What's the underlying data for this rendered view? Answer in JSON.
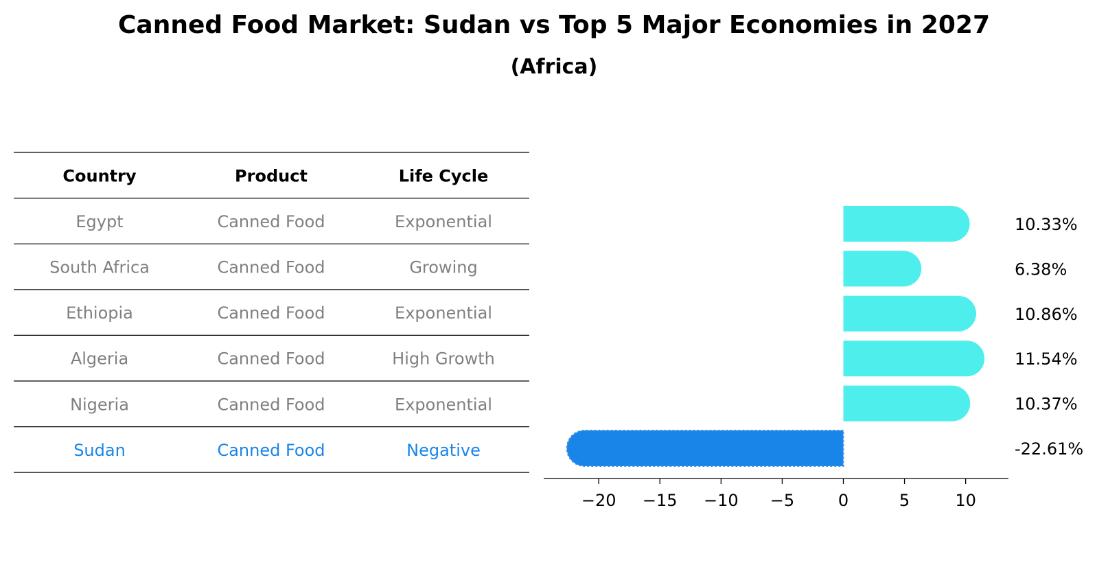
{
  "title": "Canned Food Market: Sudan vs Top 5 Major Economies in 2027",
  "subtitle": "(Africa)",
  "colors": {
    "highlight": "#1a85e8",
    "bar": "#4eeeec",
    "muted_text": "#808080",
    "rule": "#000000"
  },
  "table": {
    "headers": [
      "Country",
      "Product",
      "Life Cycle"
    ],
    "rows": [
      {
        "country": "Egypt",
        "product": "Canned Food",
        "life_cycle": "Exponential",
        "highlight": false
      },
      {
        "country": "South Africa",
        "product": "Canned Food",
        "life_cycle": "Growing",
        "highlight": false
      },
      {
        "country": "Ethiopia",
        "product": "Canned Food",
        "life_cycle": "Exponential",
        "highlight": false
      },
      {
        "country": "Algeria",
        "product": "Canned Food",
        "life_cycle": "High Growth",
        "highlight": false
      },
      {
        "country": "Nigeria",
        "product": "Canned Food",
        "life_cycle": "Exponential",
        "highlight": false
      },
      {
        "country": "Sudan",
        "product": "Canned Food",
        "life_cycle": "Negative",
        "highlight": true
      }
    ]
  },
  "chart_data": {
    "type": "bar",
    "orientation": "horizontal",
    "title": "Canned Food Market: Sudan vs Top 5 Major Economies in 2027",
    "subtitle": "(Africa)",
    "categories": [
      "Egypt",
      "South Africa",
      "Ethiopia",
      "Algeria",
      "Nigeria",
      "Sudan"
    ],
    "values": [
      10.33,
      6.38,
      10.86,
      11.54,
      10.37,
      -22.61
    ],
    "value_labels": [
      "10.33%",
      "6.38%",
      "10.86%",
      "11.54%",
      "10.37%",
      "-22.61%"
    ],
    "highlight_index": 5,
    "xlim": [
      -24.5,
      13.5
    ],
    "xticks": [
      -20,
      -15,
      -10,
      -5,
      0,
      5,
      10
    ],
    "xtick_labels": [
      "−20",
      "−15",
      "−10",
      "−5",
      "0",
      "5",
      "10"
    ],
    "xlabel": "",
    "ylabel": "",
    "grid": false,
    "legend": "none"
  }
}
